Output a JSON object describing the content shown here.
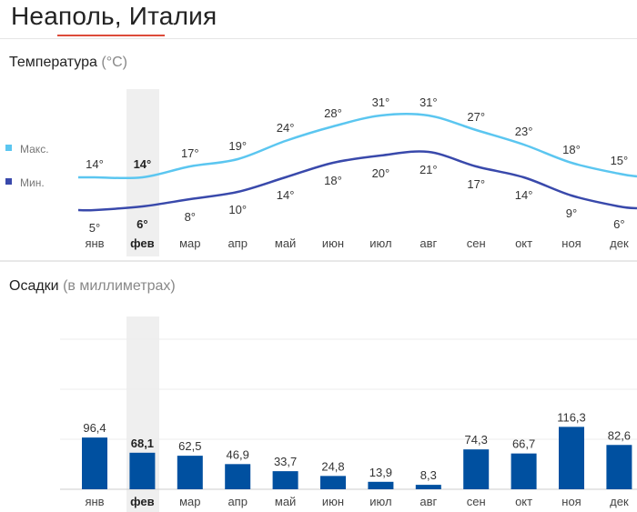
{
  "header": {
    "title": "Неаполь, Италия"
  },
  "temperature": {
    "heading": "Температура",
    "unit": "(°C)"
  },
  "precipitation": {
    "heading": "Осадки",
    "unit": "(в миллиметрах)"
  },
  "selected_month_index": 1,
  "colors": {
    "max_line": "#5bc6f0",
    "min_line": "#3949ab",
    "bars": "#0050a0",
    "highlight": "#efefef",
    "underline": "#dd4b39"
  },
  "chart_data": [
    {
      "type": "line",
      "title": "Температура (°C)",
      "categories": [
        "янв",
        "фев",
        "мар",
        "апр",
        "май",
        "июн",
        "июл",
        "авг",
        "сен",
        "окт",
        "ноя",
        "дек"
      ],
      "series": [
        {
          "name": "Макс.",
          "values": [
            14,
            14,
            17,
            19,
            24,
            28,
            31,
            31,
            27,
            23,
            18,
            15
          ],
          "labels": [
            "14°",
            "14°",
            "17°",
            "19°",
            "24°",
            "28°",
            "31°",
            "31°",
            "27°",
            "23°",
            "18°",
            "15°"
          ]
        },
        {
          "name": "Мин.",
          "values": [
            5,
            6,
            8,
            10,
            14,
            18,
            20,
            21,
            17,
            14,
            9,
            6
          ],
          "labels": [
            "5°",
            "6°",
            "8°",
            "10°",
            "14°",
            "18°",
            "20°",
            "21°",
            "17°",
            "14°",
            "9°",
            "6°"
          ]
        }
      ],
      "legend": "left"
    },
    {
      "type": "bar",
      "title": "Осадки (в миллиметрах)",
      "categories": [
        "янв",
        "фев",
        "мар",
        "апр",
        "май",
        "июн",
        "июл",
        "авг",
        "сен",
        "окт",
        "ноя",
        "дек"
      ],
      "values": [
        96.4,
        68.1,
        62.5,
        46.9,
        33.7,
        24.8,
        13.9,
        8.3,
        74.3,
        66.7,
        116.3,
        82.6
      ],
      "labels": [
        "96,4",
        "68,1",
        "62,5",
        "46,9",
        "33,7",
        "24,8",
        "13,9",
        "8,3",
        "74,3",
        "66,7",
        "116,3",
        "82,6"
      ]
    }
  ]
}
